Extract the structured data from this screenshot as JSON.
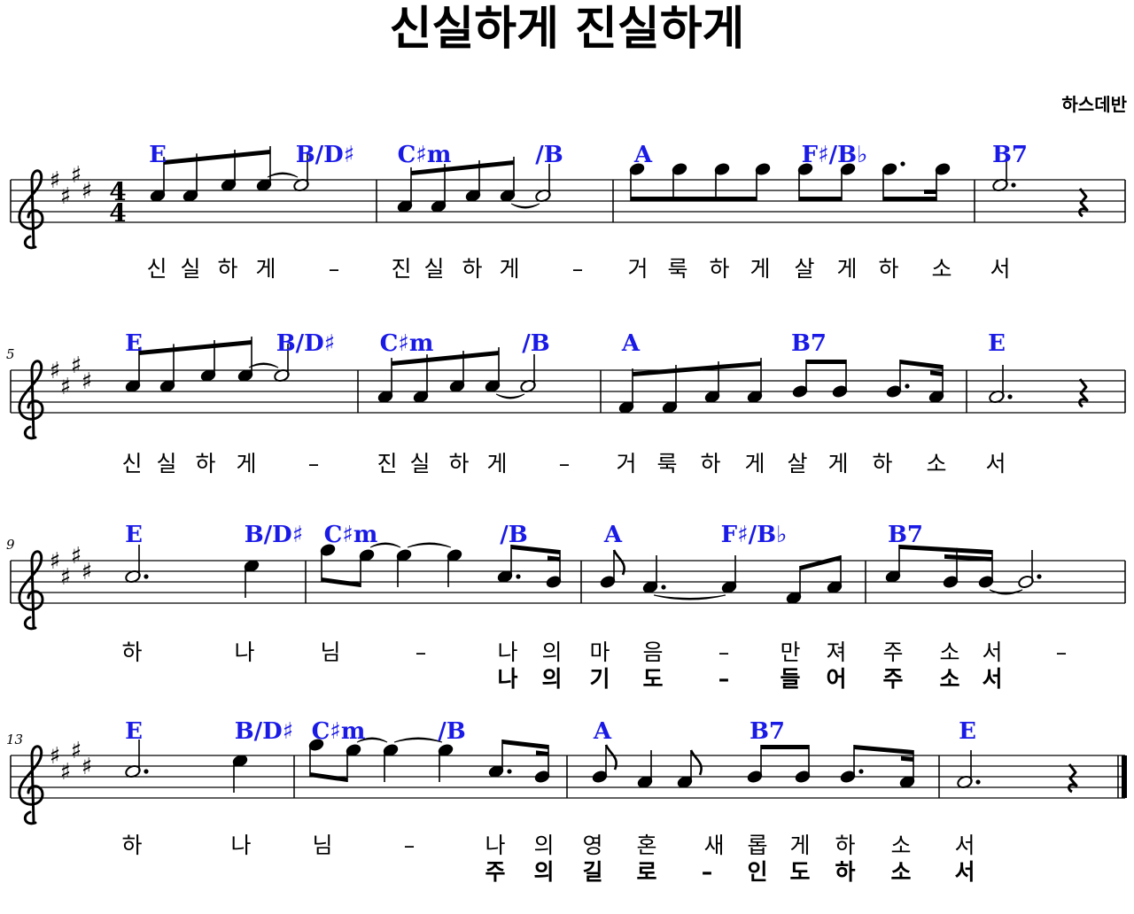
{
  "title": "신실하게 진실하게",
  "composer": "하스데반",
  "time_signature": {
    "top": "4",
    "bottom": "4"
  },
  "key_accidental": "♯",
  "systems": [
    {
      "measure_number": "",
      "chords": [
        "E",
        "B/D♯",
        "C♯m",
        "/B",
        "A",
        "F♯/B♭",
        "B7"
      ],
      "lyrics": [
        "신",
        "실",
        "하",
        "게",
        "–",
        "진",
        "실",
        "하",
        "게",
        "–",
        "거",
        "룩",
        "하",
        "게",
        "살",
        "게",
        "하",
        "소",
        "서"
      ],
      "lyrics2": []
    },
    {
      "measure_number": "5",
      "chords": [
        "E",
        "B/D♯",
        "C♯m",
        "/B",
        "A",
        "B7",
        "E"
      ],
      "lyrics": [
        "신",
        "실",
        "하",
        "게",
        "–",
        "진",
        "실",
        "하",
        "게",
        "–",
        "거",
        "룩",
        "하",
        "게",
        "살",
        "게",
        "하",
        "소",
        "서"
      ],
      "lyrics2": []
    },
    {
      "measure_number": "9",
      "chords": [
        "E",
        "B/D♯",
        "C♯m",
        "/B",
        "A",
        "F♯/B♭",
        "B7"
      ],
      "lyrics": [
        "하",
        "나",
        "님",
        "–",
        "나",
        "의",
        "마",
        "음",
        "–",
        "만",
        "져",
        "주",
        "소",
        "서",
        "–"
      ],
      "lyrics2": [
        "나",
        "의",
        "기",
        "도",
        "–",
        "들",
        "어",
        "주",
        "소",
        "서"
      ]
    },
    {
      "measure_number": "13",
      "chords": [
        "E",
        "B/D♯",
        "C♯m",
        "/B",
        "A",
        "B7",
        "E"
      ],
      "lyrics": [
        "하",
        "나",
        "님",
        "–",
        "나",
        "의",
        "영",
        "혼",
        "새",
        "롭",
        "게",
        "하",
        "소",
        "서"
      ],
      "lyrics2": [
        "주",
        "의",
        "길",
        "로",
        "–",
        "인",
        "도",
        "하",
        "소",
        "서"
      ]
    }
  ]
}
